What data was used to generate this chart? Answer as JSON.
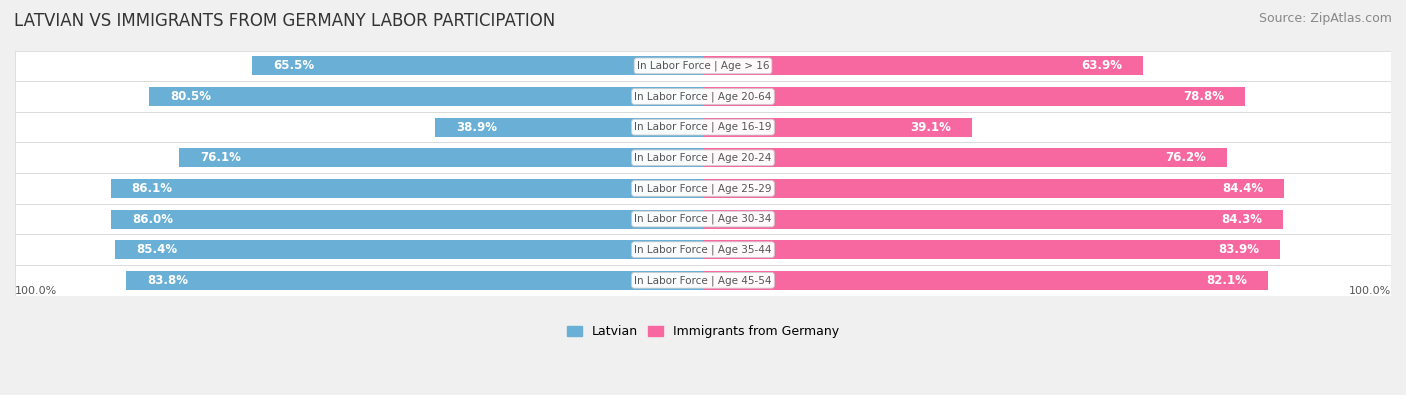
{
  "title": "LATVIAN VS IMMIGRANTS FROM GERMANY LABOR PARTICIPATION",
  "source": "Source: ZipAtlas.com",
  "categories": [
    "In Labor Force | Age > 16",
    "In Labor Force | Age 20-64",
    "In Labor Force | Age 16-19",
    "In Labor Force | Age 20-24",
    "In Labor Force | Age 25-29",
    "In Labor Force | Age 30-34",
    "In Labor Force | Age 35-44",
    "In Labor Force | Age 45-54"
  ],
  "latvian_values": [
    65.5,
    80.5,
    38.9,
    76.1,
    86.1,
    86.0,
    85.4,
    83.8
  ],
  "immigrant_values": [
    63.9,
    78.8,
    39.1,
    76.2,
    84.4,
    84.3,
    83.9,
    82.1
  ],
  "latvian_color": "#6aafd6",
  "latvian_color_light": "#b8d4ea",
  "immigrant_color": "#f768a1",
  "immigrant_color_light": "#fbb4ca",
  "bar_height": 0.62,
  "background_color": "#f0f0f0",
  "row_bg_even": "#ffffff",
  "row_bg_odd": "#f0f0f0",
  "label_color_dark": "#555555",
  "label_color_white": "#ffffff",
  "x_max": 100.0,
  "legend_label_latvian": "Latvian",
  "legend_label_immigrant": "Immigrants from Germany",
  "x_axis_label_left": "100.0%",
  "x_axis_label_right": "100.0%",
  "title_fontsize": 12,
  "source_fontsize": 9,
  "bar_label_fontsize": 8.5,
  "category_fontsize": 7.5,
  "legend_fontsize": 9,
  "axis_label_fontsize": 8
}
